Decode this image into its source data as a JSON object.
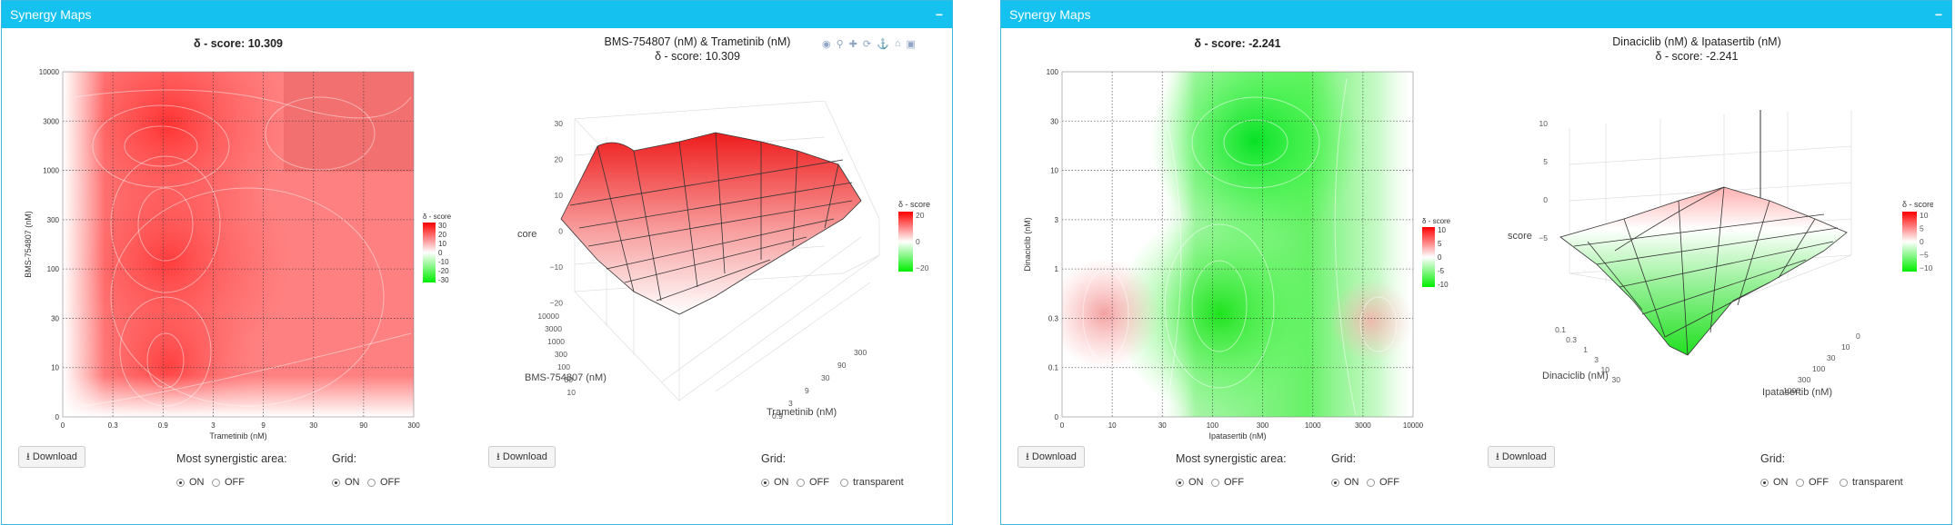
{
  "panels": [
    {
      "id": "left",
      "header": "Synergy Maps",
      "collapse": "−",
      "heatmap": {
        "title_prefix": "δ - score:",
        "score": "10.309",
        "x_label": "Trametinib (nM)",
        "y_label": "BMS-754807 (nM)",
        "x_ticks": [
          "0",
          "0.3",
          "0.9",
          "3",
          "9",
          "30",
          "90",
          "300"
        ],
        "y_ticks": [
          "0",
          "10",
          "30",
          "100",
          "300",
          "1000",
          "3000",
          "10000"
        ],
        "legend_title": "δ - score",
        "legend_ticks": [
          "30",
          "20",
          "10",
          "0",
          "-10",
          "-20",
          "-30"
        ]
      },
      "surface": {
        "title_line1": "BMS-754807 (nM) & Trametinib (nM)",
        "title_line2": "δ - score: 10.309",
        "z_ticks": [
          "30",
          "20",
          "10",
          "0",
          "−10",
          "−20"
        ],
        "z_label": "core",
        "y_label": "BMS-754807 (nM)",
        "y_ticks": [
          "10000",
          "3000",
          "1000",
          "300",
          "100",
          "30",
          "10"
        ],
        "x_label": "Trametinib (nM)",
        "x_ticks": [
          "300",
          "90",
          "30",
          "9",
          "3",
          "0.9"
        ],
        "legend_title": "δ - score",
        "legend_ticks": [
          "20",
          "0",
          "−20"
        ]
      },
      "download_label": "Download",
      "download_label_2": "Download",
      "most_synergistic": {
        "label": "Most synergistic area:",
        "on": "ON",
        "off": "OFF"
      },
      "grid": {
        "label": "Grid:",
        "on": "ON",
        "off": "OFF"
      },
      "grid3d": {
        "label": "Grid:",
        "on": "ON",
        "off": "OFF",
        "transparent": "transparent"
      }
    },
    {
      "id": "right",
      "header": "Synergy Maps",
      "collapse": "−",
      "heatmap": {
        "title_prefix": "δ - score:",
        "score": "-2.241",
        "x_label": "Ipatasertib (nM)",
        "y_label": "Dinaciclib (nM)",
        "x_ticks": [
          "0",
          "10",
          "30",
          "100",
          "300",
          "1000",
          "3000",
          "10000"
        ],
        "y_ticks": [
          "0",
          "0.1",
          "0.3",
          "1",
          "3",
          "10",
          "30",
          "100"
        ],
        "legend_title": "δ - score",
        "legend_ticks": [
          "10",
          "5",
          "0",
          "-5",
          "-10"
        ]
      },
      "surface": {
        "title_line1": "Dinaciclib (nM) & Ipatasertib (nM)",
        "title_line2": "δ - score: -2.241",
        "z_ticks": [
          "10",
          "5",
          "0",
          "−5"
        ],
        "z_label": "score",
        "y_label": "Dinaciclib (nM)",
        "y_ticks": [
          "0.1",
          "0.3",
          "1",
          "3",
          "10",
          "30"
        ],
        "x_label": "Ipatasertib (nM)",
        "x_ticks": [
          "0",
          "10",
          "30",
          "100",
          "300",
          "1000"
        ],
        "legend_title": "δ - score",
        "legend_ticks": [
          "10",
          "5",
          "0",
          "−5",
          "−10"
        ]
      },
      "download_label": "Download",
      "download_label_2": "Download",
      "most_synergistic": {
        "label": "Most synergistic area:",
        "on": "ON",
        "off": "OFF"
      },
      "grid": {
        "label": "Grid:",
        "on": "ON",
        "off": "OFF"
      },
      "grid3d": {
        "label": "Grid:",
        "on": "ON",
        "off": "OFF",
        "transparent": "transparent"
      }
    }
  ],
  "modebar_icons": [
    "camera-icon",
    "zoom-icon",
    "pan-icon",
    "rotate-icon",
    "orbit-icon",
    "home-icon",
    "hover-icon"
  ],
  "colors": {
    "header": "#14c1ef",
    "synergy": "#ff0000",
    "antagonism": "#00e000",
    "neutral": "#ffffff"
  }
}
